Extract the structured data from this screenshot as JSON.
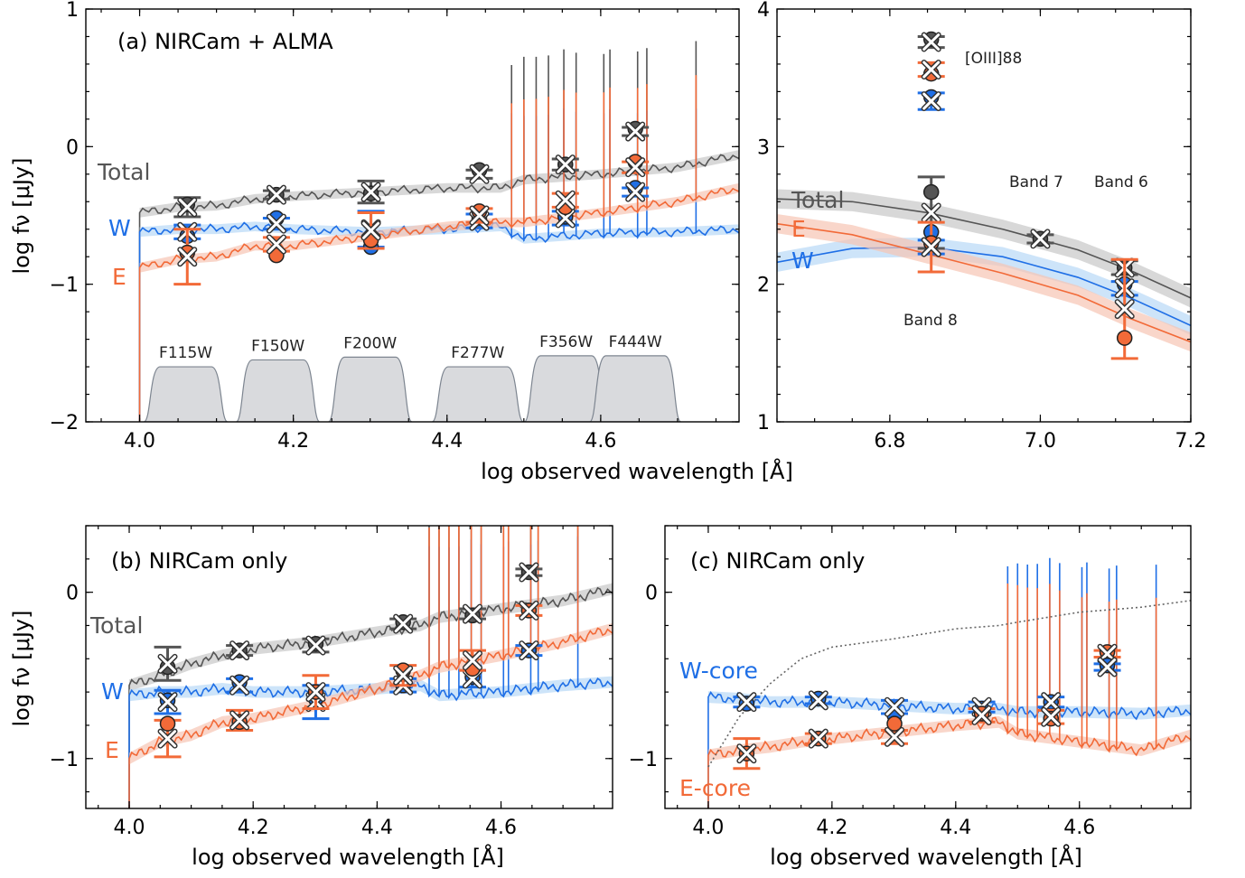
{
  "chart_data": [
    {
      "id": "a",
      "type": "line",
      "title": "(a) NIRCam + ALMA",
      "xlabel": "log observed wavelength [Å]",
      "ylabel": "log fν [μJy]",
      "xlim": [
        3.93,
        4.78
      ],
      "ylim": [
        -2,
        1
      ],
      "xticks": [
        "4.0",
        "4.2",
        "4.4",
        "4.6"
      ],
      "xtick_values": [
        4.0,
        4.2,
        4.4,
        4.6
      ],
      "yticks": [
        "−2",
        "−1",
        "0",
        "1"
      ],
      "ytick_values": [
        -2,
        -1,
        0,
        1
      ],
      "series_labels": {
        "total": "Total",
        "w": "W",
        "e": "E"
      },
      "colors": {
        "total": "#555555",
        "w": "#1f6fe6",
        "e": "#f26a38"
      },
      "filter_labels": [
        "F115W",
        "F150W",
        "F200W",
        "F277W",
        "F356W",
        "F444W"
      ],
      "series": [
        {
          "name": "Total",
          "x": [
            4.0,
            4.05,
            4.1,
            4.15,
            4.2,
            4.3,
            4.4,
            4.47,
            4.5,
            4.6,
            4.7,
            4.78
          ],
          "y": [
            -0.48,
            -0.44,
            -0.43,
            -0.38,
            -0.36,
            -0.33,
            -0.3,
            -0.3,
            -0.24,
            -0.2,
            -0.15,
            -0.06
          ]
        },
        {
          "name": "W",
          "x": [
            4.0,
            4.05,
            4.1,
            4.15,
            4.2,
            4.3,
            4.4,
            4.47,
            4.5,
            4.6,
            4.7,
            4.78
          ],
          "y": [
            -0.62,
            -0.6,
            -0.6,
            -0.58,
            -0.6,
            -0.62,
            -0.6,
            -0.58,
            -0.67,
            -0.63,
            -0.62,
            -0.6
          ]
        },
        {
          "name": "E",
          "x": [
            4.0,
            4.05,
            4.1,
            4.15,
            4.2,
            4.3,
            4.4,
            4.47,
            4.5,
            4.6,
            4.7,
            4.78
          ],
          "y": [
            -0.88,
            -0.82,
            -0.8,
            -0.72,
            -0.72,
            -0.65,
            -0.58,
            -0.55,
            -0.55,
            -0.48,
            -0.4,
            -0.3
          ]
        }
      ],
      "points": [
        {
          "series": "Total",
          "x": 4.062,
          "circle": -0.42,
          "cross": -0.44,
          "err": 0.07
        },
        {
          "series": "W",
          "x": 4.062,
          "circle": -0.65,
          "cross": -0.62,
          "err": 0.05
        },
        {
          "series": "E",
          "x": 4.062,
          "circle": -0.77,
          "cross": -0.8,
          "err": 0.2
        },
        {
          "series": "Total",
          "x": 4.178,
          "circle": -0.35,
          "cross": -0.35,
          "err": 0.03
        },
        {
          "series": "W",
          "x": 4.178,
          "circle": -0.52,
          "cross": -0.56,
          "err": 0.04
        },
        {
          "series": "E",
          "x": 4.178,
          "circle": -0.79,
          "cross": -0.71,
          "err": 0.05
        },
        {
          "series": "Total",
          "x": 4.301,
          "circle": -0.34,
          "cross": -0.33,
          "err": 0.08
        },
        {
          "series": "W",
          "x": 4.301,
          "circle": -0.73,
          "cross": -0.6,
          "err": 0.13
        },
        {
          "series": "E",
          "x": 4.301,
          "circle": -0.68,
          "cross": -0.61,
          "err": 0.13
        },
        {
          "series": "Total",
          "x": 4.442,
          "circle": -0.17,
          "cross": -0.2,
          "err": 0.03
        },
        {
          "series": "W",
          "x": 4.442,
          "circle": -0.52,
          "cross": -0.54,
          "err": 0.05
        },
        {
          "series": "E",
          "x": 4.442,
          "circle": -0.47,
          "cross": -0.5,
          "err": 0.05
        },
        {
          "series": "Total",
          "x": 4.554,
          "circle": -0.13,
          "cross": -0.13,
          "err": 0.04
        },
        {
          "series": "W",
          "x": 4.554,
          "circle": -0.51,
          "cross": -0.52,
          "err": 0.05
        },
        {
          "series": "E",
          "x": 4.554,
          "circle": -0.44,
          "cross": -0.39,
          "err": 0.05
        },
        {
          "series": "Total",
          "x": 4.645,
          "circle": 0.13,
          "cross": 0.11,
          "err": 0.03
        },
        {
          "series": "W",
          "x": 4.645,
          "circle": -0.3,
          "cross": -0.33,
          "err": 0.03
        },
        {
          "series": "E",
          "x": 4.645,
          "circle": -0.11,
          "cross": -0.15,
          "err": 0.04
        }
      ]
    },
    {
      "id": "a-right",
      "type": "line",
      "xlim": [
        6.65,
        7.2
      ],
      "ylim": [
        1,
        4
      ],
      "xticks": [
        "6.8",
        "7.0",
        "7.2"
      ],
      "xtick_values": [
        6.8,
        7.0,
        7.2
      ],
      "yticks": [
        "1",
        "2",
        "3",
        "4"
      ],
      "ytick_values": [
        1,
        2,
        3,
        4
      ],
      "series_labels": {
        "total": "Total",
        "w": "W",
        "e": "E"
      },
      "annotations": [
        "[OIII]88",
        "Band 7",
        "Band 6",
        "Band 8"
      ],
      "series": [
        {
          "name": "Total",
          "x": [
            6.65,
            6.75,
            6.85,
            6.95,
            7.05,
            7.12,
            7.2
          ],
          "y": [
            2.62,
            2.6,
            2.52,
            2.4,
            2.25,
            2.1,
            1.9
          ]
        },
        {
          "name": "W",
          "x": [
            6.65,
            6.75,
            6.85,
            6.95,
            7.05,
            7.12,
            7.2
          ],
          "y": [
            2.16,
            2.26,
            2.27,
            2.2,
            2.05,
            1.9,
            1.7
          ]
        },
        {
          "name": "E",
          "x": [
            6.65,
            6.75,
            6.85,
            6.95,
            7.05,
            7.12,
            7.2
          ],
          "y": [
            2.44,
            2.36,
            2.22,
            2.08,
            1.92,
            1.75,
            1.58
          ]
        }
      ],
      "points": [
        {
          "series": "Total",
          "x": 6.855,
          "circle": 2.67,
          "cross": 2.52,
          "err": 0.26
        },
        {
          "series": "W",
          "x": 6.855,
          "circle": 2.38,
          "cross": 2.27,
          "err": 0.05
        },
        {
          "series": "E",
          "x": 6.855,
          "circle": 2.3,
          "cross": 2.27,
          "err": 0.18
        },
        {
          "series": "Total",
          "x": 6.855,
          "circle": 3.78,
          "cross": 3.76,
          "err": 0.04
        },
        {
          "series": "E",
          "x": 6.855,
          "circle": 3.53,
          "cross": 3.56,
          "err": 0.05
        },
        {
          "series": "W",
          "x": 6.855,
          "circle": 3.36,
          "cross": 3.33,
          "err": 0.06
        },
        {
          "series": "Total",
          "x": 7.0,
          "circle": 2.33,
          "cross": 2.33,
          "err": 0.03
        },
        {
          "series": "Total",
          "x": 7.112,
          "circle": 2.12,
          "cross": 2.12,
          "err": 0.05
        },
        {
          "series": "W",
          "x": 7.112,
          "circle": 2.0,
          "cross": 1.97,
          "err": 0.05
        },
        {
          "series": "E",
          "x": 7.112,
          "circle": 1.61,
          "cross": 1.82,
          "err": 0.36
        }
      ]
    },
    {
      "id": "b",
      "type": "line",
      "title": "(b) NIRCam only",
      "xlabel": "log observed wavelength [Å]",
      "ylabel": "log fν [μJy]",
      "xlim": [
        3.93,
        4.78
      ],
      "ylim": [
        -1.3,
        0.4
      ],
      "xticks": [
        "4.0",
        "4.2",
        "4.4",
        "4.6"
      ],
      "xtick_values": [
        4.0,
        4.2,
        4.4,
        4.6
      ],
      "yticks": [
        "−1",
        "0"
      ],
      "ytick_values": [
        -1,
        0
      ],
      "series_labels": {
        "total": "Total",
        "w": "W",
        "e": "E"
      },
      "series": [
        {
          "name": "Total",
          "x": [
            4.0,
            4.05,
            4.1,
            4.15,
            4.2,
            4.3,
            4.4,
            4.47,
            4.5,
            4.6,
            4.7,
            4.78
          ],
          "y": [
            -0.56,
            -0.5,
            -0.43,
            -0.38,
            -0.34,
            -0.3,
            -0.24,
            -0.2,
            -0.15,
            -0.1,
            -0.05,
            0.02
          ]
        },
        {
          "name": "W",
          "x": [
            4.0,
            4.05,
            4.1,
            4.15,
            4.2,
            4.3,
            4.4,
            4.47,
            4.5,
            4.6,
            4.7,
            4.78
          ],
          "y": [
            -0.62,
            -0.6,
            -0.6,
            -0.58,
            -0.6,
            -0.6,
            -0.58,
            -0.56,
            -0.62,
            -0.6,
            -0.56,
            -0.54
          ]
        },
        {
          "name": "E",
          "x": [
            4.0,
            4.05,
            4.1,
            4.15,
            4.2,
            4.3,
            4.4,
            4.47,
            4.5,
            4.6,
            4.7,
            4.78
          ],
          "y": [
            -1.0,
            -0.9,
            -0.86,
            -0.78,
            -0.76,
            -0.68,
            -0.58,
            -0.5,
            -0.45,
            -0.38,
            -0.3,
            -0.22
          ]
        }
      ],
      "points": [
        {
          "series": "Total",
          "x": 4.062,
          "circle": -0.45,
          "cross": -0.43,
          "err": 0.1
        },
        {
          "series": "W",
          "x": 4.062,
          "circle": -0.65,
          "cross": -0.66,
          "err": 0.07
        },
        {
          "series": "E",
          "x": 4.062,
          "circle": -0.79,
          "cross": -0.88,
          "err": 0.11
        },
        {
          "series": "Total",
          "x": 4.178,
          "circle": -0.35,
          "cross": -0.35,
          "err": 0.03
        },
        {
          "series": "W",
          "x": 4.178,
          "circle": -0.54,
          "cross": -0.56,
          "err": 0.04
        },
        {
          "series": "E",
          "x": 4.178,
          "circle": -0.78,
          "cross": -0.77,
          "err": 0.06
        },
        {
          "series": "Total",
          "x": 4.301,
          "circle": -0.31,
          "cross": -0.32,
          "err": 0.04
        },
        {
          "series": "W",
          "x": 4.301,
          "circle": -0.64,
          "cross": -0.66,
          "err": 0.1
        },
        {
          "series": "E",
          "x": 4.301,
          "circle": -0.6,
          "cross": -0.6,
          "err": 0.1
        },
        {
          "series": "Total",
          "x": 4.442,
          "circle": -0.18,
          "cross": -0.19,
          "err": 0.03
        },
        {
          "series": "W",
          "x": 4.442,
          "circle": -0.56,
          "cross": -0.56,
          "err": 0.04
        },
        {
          "series": "E",
          "x": 4.442,
          "circle": -0.47,
          "cross": -0.5,
          "err": 0.06
        },
        {
          "series": "Total",
          "x": 4.554,
          "circle": -0.14,
          "cross": -0.13,
          "err": 0.03
        },
        {
          "series": "W",
          "x": 4.554,
          "circle": -0.51,
          "cross": -0.52,
          "err": 0.05
        },
        {
          "series": "E",
          "x": 4.554,
          "circle": -0.46,
          "cross": -0.41,
          "err": 0.06
        },
        {
          "series": "Total",
          "x": 4.645,
          "circle": 0.12,
          "cross": 0.12,
          "err": 0.02
        },
        {
          "series": "W",
          "x": 4.645,
          "circle": -0.35,
          "cross": -0.35,
          "err": 0.03
        },
        {
          "series": "E",
          "x": 4.645,
          "circle": -0.11,
          "cross": -0.11,
          "err": 0.03
        }
      ]
    },
    {
      "id": "c",
      "type": "line",
      "title": "(c) NIRCam only",
      "xlabel": "log observed wavelength [Å]",
      "xlim": [
        3.93,
        4.78
      ],
      "ylim": [
        -1.3,
        0.4
      ],
      "xticks": [
        "4.0",
        "4.2",
        "4.4",
        "4.6"
      ],
      "xtick_values": [
        4.0,
        4.2,
        4.4,
        4.6
      ],
      "yticks": [
        "−1",
        "0"
      ],
      "ytick_values": [
        -1,
        0
      ],
      "series_labels": {
        "w": "W-core",
        "e": "E-core"
      },
      "series": [
        {
          "name": "W-core",
          "x": [
            4.0,
            4.05,
            4.1,
            4.15,
            4.2,
            4.3,
            4.4,
            4.47,
            4.5,
            4.6,
            4.7,
            4.78
          ],
          "y": [
            -0.63,
            -0.64,
            -0.66,
            -0.66,
            -0.66,
            -0.68,
            -0.7,
            -0.7,
            -0.72,
            -0.72,
            -0.73,
            -0.71
          ]
        },
        {
          "name": "E-core",
          "x": [
            4.0,
            4.05,
            4.1,
            4.15,
            4.2,
            4.3,
            4.4,
            4.47,
            4.5,
            4.6,
            4.7,
            4.78
          ],
          "y": [
            -0.98,
            -0.95,
            -0.93,
            -0.9,
            -0.88,
            -0.84,
            -0.8,
            -0.78,
            -0.85,
            -0.9,
            -0.95,
            -0.86
          ]
        },
        {
          "name": "",
          "x": [
            4.0,
            4.05,
            4.1,
            4.15,
            4.2,
            4.3,
            4.4,
            4.47,
            4.5,
            4.6,
            4.7,
            4.78
          ],
          "y": [
            -1.05,
            -0.75,
            -0.55,
            -0.4,
            -0.33,
            -0.28,
            -0.22,
            -0.2,
            -0.18,
            -0.12,
            -0.09,
            -0.05
          ]
        }
      ],
      "points": [
        {
          "series": "W-core",
          "x": 4.062,
          "circle": -0.67,
          "cross": -0.66,
          "err": 0.03
        },
        {
          "series": "E-core",
          "x": 4.062,
          "circle": -0.97,
          "cross": -0.97,
          "err": 0.09
        },
        {
          "series": "W-core",
          "x": 4.178,
          "circle": -0.64,
          "cross": -0.65,
          "err": 0.02
        },
        {
          "series": "E-core",
          "x": 4.178,
          "circle": -0.88,
          "cross": -0.88,
          "err": 0.03
        },
        {
          "series": "W-core",
          "x": 4.301,
          "circle": -0.74,
          "cross": -0.69,
          "err": 0.04
        },
        {
          "series": "E-core",
          "x": 4.301,
          "circle": -0.79,
          "cross": -0.87,
          "err": 0.04
        },
        {
          "series": "W-core",
          "x": 4.442,
          "circle": -0.7,
          "cross": -0.69,
          "err": 0.03
        },
        {
          "series": "E-core",
          "x": 4.442,
          "circle": -0.73,
          "cross": -0.74,
          "err": 0.04
        },
        {
          "series": "W-core",
          "x": 4.554,
          "circle": -0.66,
          "cross": -0.66,
          "err": 0.03
        },
        {
          "series": "E-core",
          "x": 4.554,
          "circle": -0.76,
          "cross": -0.75,
          "err": 0.04
        },
        {
          "series": "E-core",
          "x": 4.645,
          "circle": -0.36,
          "cross": -0.37,
          "err": 0.02
        },
        {
          "series": "W-core",
          "x": 4.645,
          "circle": -0.44,
          "cross": -0.45,
          "err": 0.02
        }
      ]
    }
  ]
}
